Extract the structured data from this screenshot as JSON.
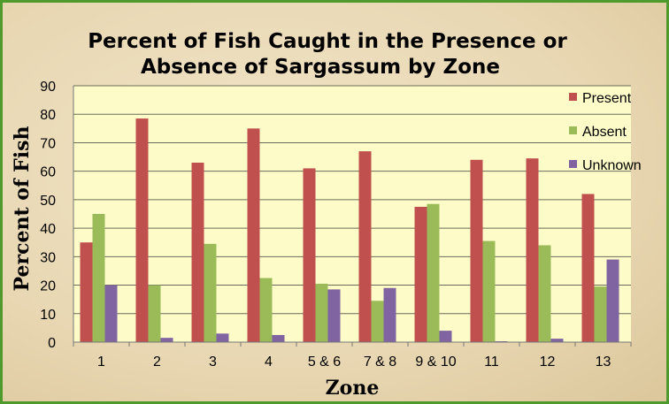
{
  "chart_data": {
    "type": "bar",
    "title": [
      "Percent of Fish Caught in the Presence or",
      "Absence of Sargassum by Zone"
    ],
    "xlabel": "Zone",
    "ylabel": "Percent of Fish",
    "ylim": [
      0,
      90
    ],
    "yticks": [
      0,
      10,
      20,
      30,
      40,
      50,
      60,
      70,
      80,
      90
    ],
    "grid": true,
    "legend_position": "top-right",
    "categories": [
      "1",
      "2",
      "3",
      "4",
      "5 & 6",
      "7 & 8",
      "9 & 10",
      "11",
      "12",
      "13"
    ],
    "series": [
      {
        "name": "Present",
        "color": "#c0504d",
        "values": [
          35,
          78.5,
          63,
          75,
          61,
          67,
          47.5,
          64,
          64.5,
          52
        ]
      },
      {
        "name": "Absent",
        "color": "#9bbb59",
        "values": [
          45,
          20,
          34.5,
          22.5,
          20.5,
          14.5,
          48.5,
          35.5,
          34,
          19.5
        ]
      },
      {
        "name": "Unknown",
        "color": "#8064a2",
        "values": [
          20,
          1.5,
          3,
          2.5,
          18.5,
          19,
          4,
          0.3,
          1.2,
          29
        ]
      }
    ]
  }
}
